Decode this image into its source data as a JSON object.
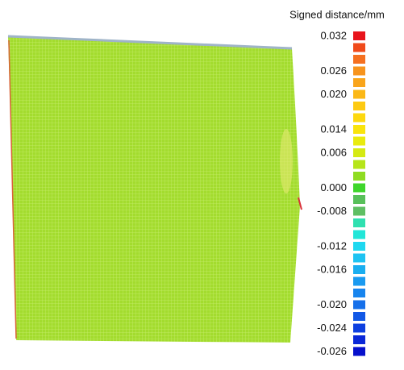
{
  "legend": {
    "title": "Signed distance/mm",
    "swatches": [
      {
        "color": "#e8141c",
        "label": "0.032"
      },
      {
        "color": "#f04a1a"
      },
      {
        "color": "#f57020"
      },
      {
        "color": "#f7941d",
        "label": "0.026"
      },
      {
        "color": "#f9a51b"
      },
      {
        "color": "#fbb817",
        "label": "0.020"
      },
      {
        "color": "#fdca12"
      },
      {
        "color": "#fdd80e"
      },
      {
        "color": "#f9e40c",
        "label": "0.014"
      },
      {
        "color": "#e9eb0e"
      },
      {
        "color": "#d5ea12",
        "label": "0.006"
      },
      {
        "color": "#b6e51a"
      },
      {
        "color": "#8fdc22"
      },
      {
        "color": "#3fd62b",
        "label": "0.000"
      },
      {
        "color": "#58c05a"
      },
      {
        "color": "#5fbf63",
        "label": "-0.008"
      },
      {
        "color": "#2fe0b0"
      },
      {
        "color": "#22e6d8"
      },
      {
        "color": "#1fd8f0",
        "label": "-0.012"
      },
      {
        "color": "#1ec3f2"
      },
      {
        "color": "#1aaef0",
        "label": "-0.016"
      },
      {
        "color": "#1a9af0"
      },
      {
        "color": "#1885ee"
      },
      {
        "color": "#1670ea",
        "label": "-0.020"
      },
      {
        "color": "#1258e6"
      },
      {
        "color": "#0e40e0",
        "label": "-0.024"
      },
      {
        "color": "#0a28d8"
      },
      {
        "color": "#0610cc",
        "label": "-0.026"
      }
    ]
  }
}
